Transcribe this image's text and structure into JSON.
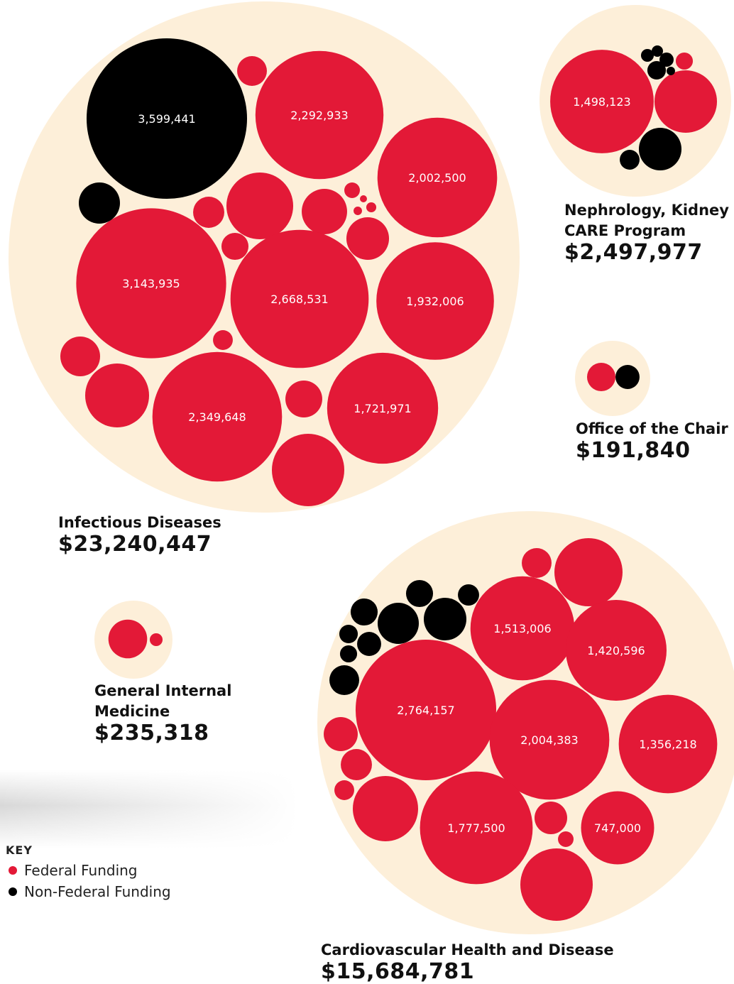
{
  "chart_data": {
    "type": "bubble",
    "key_title": "KEY",
    "background_color": "#fdefd9",
    "series": [
      {
        "name": "Federal Funding",
        "color": "#e31937"
      },
      {
        "name": "Non-Federal Funding",
        "color": "#000000"
      }
    ],
    "groups": [
      {
        "name": "Infectious Diseases",
        "total": {
          "value": 23240447,
          "label": "$23,240,447"
        },
        "series": [
          {
            "values": [
              124000,
              2292933,
              2002500,
              623000,
              136000,
              288000,
              34000,
              7000,
              14000,
              10000,
              254000,
              102000,
              3143935,
              2668531,
              1932006,
              55000,
              221000,
              571000,
              2349648,
              190000,
              1721971,
              733000
            ],
            "value_labels": [
              null,
              "2,292,933",
              "2,002,500",
              null,
              null,
              null,
              null,
              null,
              null,
              null,
              null,
              null,
              "3,143,935",
              "2,668,531",
              "1,932,006",
              null,
              null,
              null,
              "2,349,648",
              null,
              "1,721,971",
              null
            ]
          },
          {
            "values": [
              3599441,
              237000
            ],
            "value_labels": [
              "3,599,441",
              null
            ]
          }
        ]
      },
      {
        "name": "Nephrology, Kidney CARE Program",
        "total": {
          "value": 2497977,
          "label": "$2,497,977"
        },
        "series": [
          {
            "values": [
              1498123,
              546000,
              41000
            ],
            "value_labels": [
              "1,498,123",
              null,
              null
            ]
          },
          {
            "values": [
              254000,
              55000,
              23000,
              18000,
              28000,
              48000,
              10000
            ],
            "value_labels": [
              null,
              null,
              null,
              null,
              null,
              null,
              null
            ]
          }
        ]
      },
      {
        "name": "Office of the Chair",
        "total": {
          "value": 191840,
          "label": "$191,840"
        },
        "series": [
          {
            "values": [
              113000
            ],
            "value_labels": [
              null
            ]
          },
          {
            "values": [
              81000
            ],
            "value_labels": [
              null
            ]
          }
        ]
      },
      {
        "name": "General Internal Medicine",
        "total": {
          "value": 235318,
          "label": "$235,318"
        },
        "series": [
          {
            "values": [
              210000,
              23000
            ],
            "value_labels": [
              null,
              null
            ]
          },
          {
            "values": [],
            "value_labels": []
          }
        ]
      },
      {
        "name": "Cardiovascular Health and Disease",
        "total": {
          "value": 15684781,
          "label": "$15,684,781"
        },
        "series": [
          {
            "values": [
              124000,
              649000,
              1513006,
              1420596,
              2764157,
              2004383,
              1356218,
              162000,
              136000,
              55000,
              596000,
              1777500,
              149000,
              747000,
              34000,
              733000
            ],
            "value_labels": [
              null,
              null,
              "1,513,006",
              "1,420,596",
              "2,764,157",
              "2,004,383",
              "1,356,218",
              null,
              null,
              null,
              null,
              "1,777,500",
              null,
              "747,000",
              null,
              null
            ]
          },
          {
            "values": [
              102000,
              63000,
              102000,
              237000,
              254000,
              48000,
              81000,
              41000,
              124000
            ],
            "value_labels": [
              null,
              null,
              null,
              null,
              null,
              null,
              null,
              null,
              null
            ]
          }
        ]
      }
    ]
  }
}
